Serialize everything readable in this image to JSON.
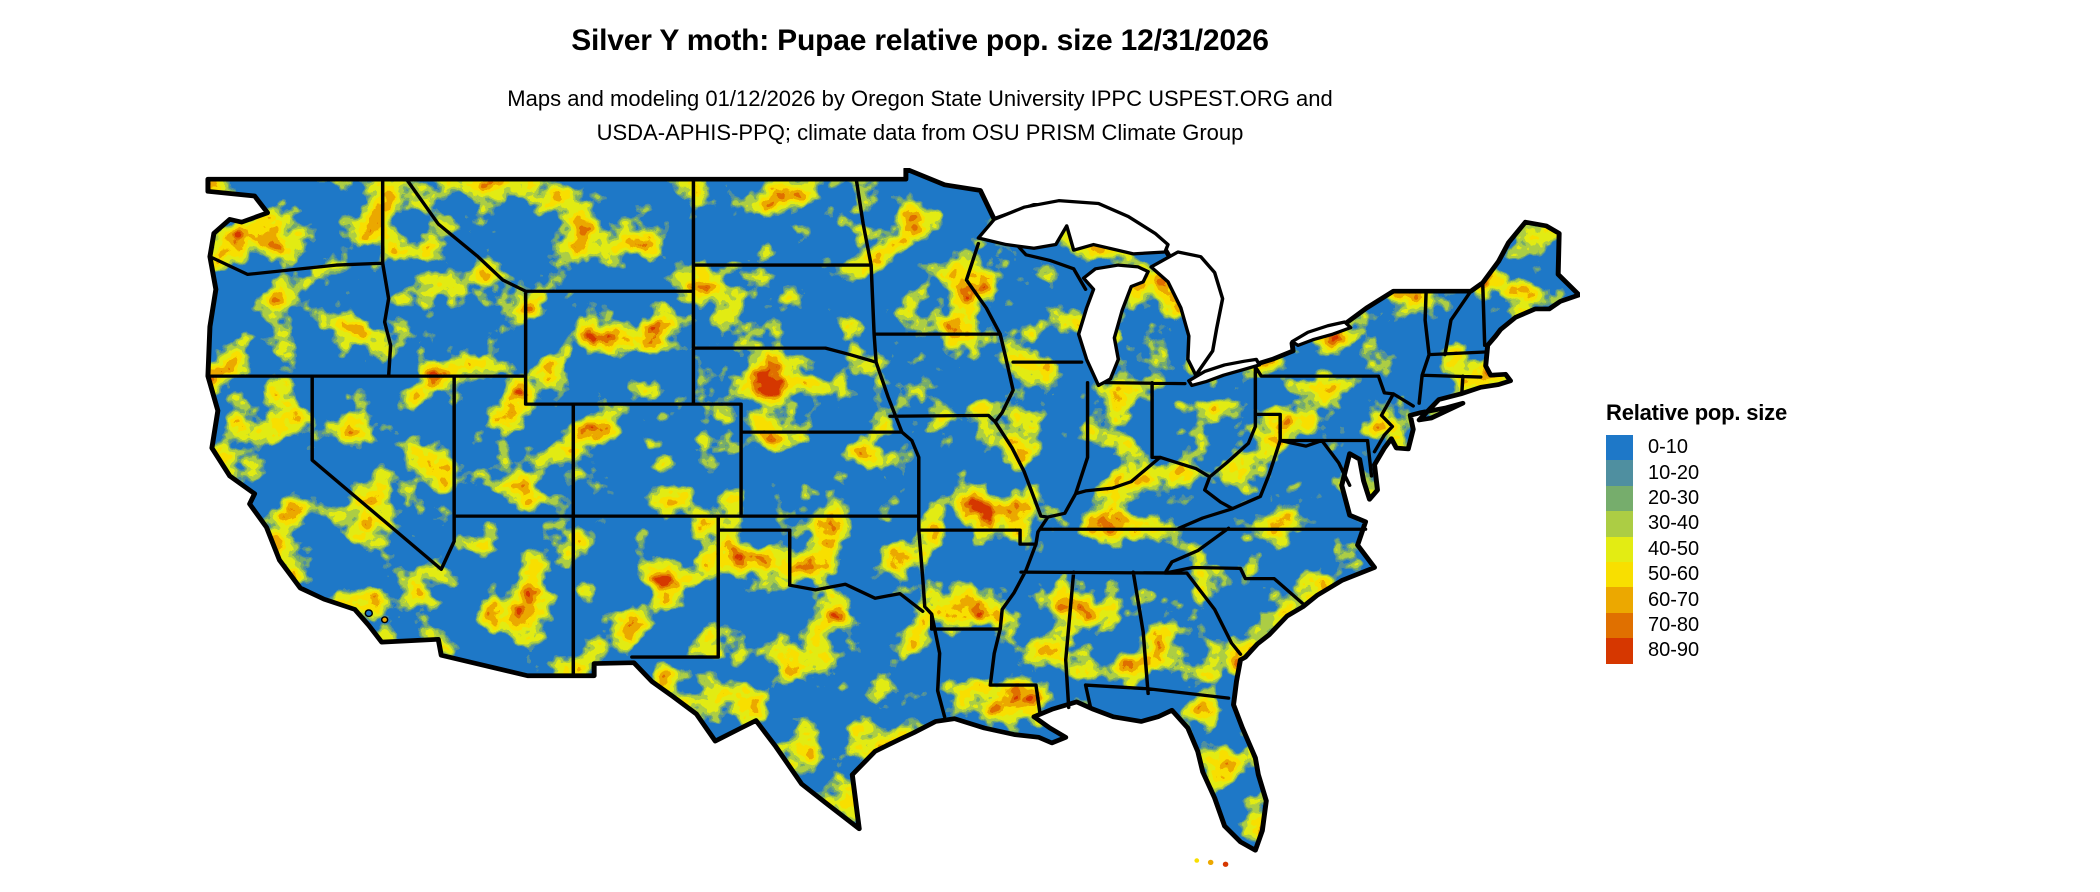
{
  "figure": {
    "title": "Silver Y moth: Pupae relative pop. size 12/31/2026",
    "subtitle_line1": "Maps and modeling 01/12/2026 by Oregon State University IPPC USPEST.ORG and",
    "subtitle_line2": "USDA-APHIS-PPQ; climate data from OSU PRISM Climate Group"
  },
  "legend": {
    "title": "Relative pop. size",
    "items": [
      {
        "label": "0-10",
        "color": "#1e78c8"
      },
      {
        "label": "10-20",
        "color": "#4f8fa0"
      },
      {
        "label": "20-30",
        "color": "#76ad6c"
      },
      {
        "label": "30-40",
        "color": "#accd44"
      },
      {
        "label": "40-50",
        "color": "#e3ec13"
      },
      {
        "label": "50-60",
        "color": "#f8df00"
      },
      {
        "label": "60-70",
        "color": "#eca800"
      },
      {
        "label": "70-80",
        "color": "#e07000"
      },
      {
        "label": "80-90",
        "color": "#d63700"
      }
    ]
  },
  "map": {
    "base_color": "#1e78c8",
    "border_color": "#000000",
    "water_color": "#ffffff"
  },
  "chart_data": {
    "type": "heatmap",
    "title": "Silver Y moth: Pupae relative pop. size 12/31/2026",
    "legend_title": "Relative pop. size",
    "bins": [
      "0-10",
      "10-20",
      "20-30",
      "30-40",
      "40-50",
      "50-60",
      "60-70",
      "70-80",
      "80-90"
    ],
    "bin_colors": [
      "#1e78c8",
      "#4f8fa0",
      "#76ad6c",
      "#accd44",
      "#e3ec13",
      "#f8df00",
      "#eca800",
      "#e07000",
      "#d63700"
    ],
    "value_range": [
      0,
      90
    ],
    "legend_position": "right",
    "notes": "Raster map of contiguous United States; low values (blue) dominate with yellow-orange-red ridges along mountainous and coastal terrain."
  }
}
